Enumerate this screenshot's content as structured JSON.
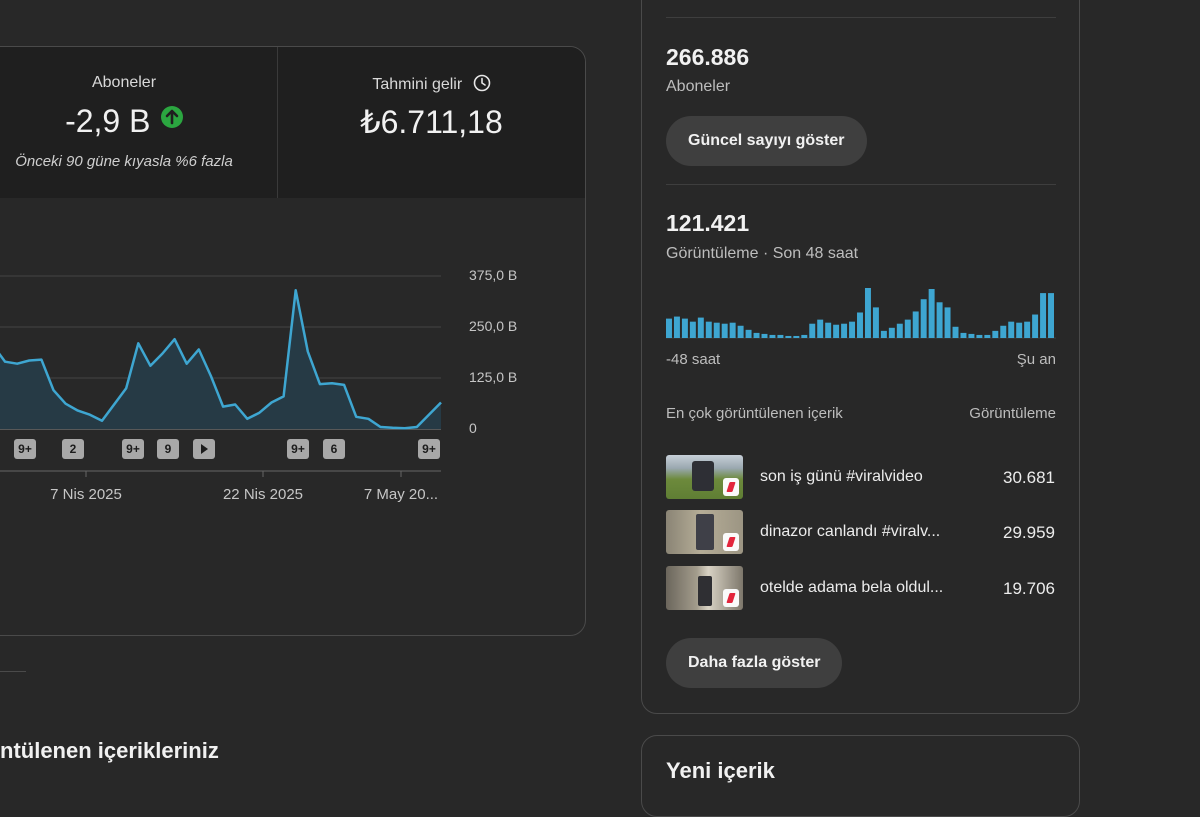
{
  "metrics": {
    "subscribers": {
      "label": "Aboneler",
      "value": "-2,9 B",
      "trend_icon": "arrow-up-icon",
      "trend_color": "#2ba640",
      "comparison": "Önceki 90 güne kıyasla %6 fazla"
    },
    "revenue": {
      "label": "Tahmini gelir",
      "info_icon": "clock-icon",
      "value": "₺6.711,18"
    }
  },
  "chart_data": {
    "type": "area",
    "ylabels": [
      "375,0 B",
      "250,0 B",
      "125,0 B",
      "0"
    ],
    "ylim": [
      0,
      375
    ],
    "xlabels": [
      "7 Nis 2025",
      "22 Nis 2025",
      "7 May 20..."
    ],
    "values": [
      205,
      165,
      160,
      168,
      170,
      95,
      62,
      45,
      35,
      20,
      60,
      100,
      210,
      155,
      185,
      220,
      160,
      195,
      130,
      55,
      60,
      25,
      40,
      65,
      80,
      340,
      190,
      110,
      112,
      108,
      30,
      25,
      5,
      3,
      2,
      5,
      35,
      65
    ],
    "line_color": "#3ea6d1",
    "area_color": "#263a45",
    "markers": [
      {
        "label": "9+",
        "type": "text"
      },
      {
        "label": "2",
        "type": "text"
      },
      {
        "label": "9+",
        "type": "text"
      },
      {
        "label": "9",
        "type": "text"
      },
      {
        "label": "",
        "type": "play-icon"
      },
      {
        "label": "9+",
        "type": "text"
      },
      {
        "label": "6",
        "type": "text"
      },
      {
        "label": "9+",
        "type": "text"
      }
    ]
  },
  "realtime": {
    "subscribers_value": "266.886",
    "subscribers_label": "Aboneler",
    "show_count_button": "Güncel sayıyı göster",
    "views_value": "121.421",
    "views_label": "Görüntüleme · Son 48 saat",
    "bar_values": [
      19,
      21,
      19,
      16,
      20,
      16,
      15,
      14,
      15,
      12,
      8,
      5,
      4,
      3,
      3,
      2,
      2,
      3,
      14,
      18,
      15,
      13,
      14,
      16,
      25,
      49,
      30,
      7,
      10,
      14,
      18,
      26,
      38,
      48,
      35,
      30,
      11,
      5,
      4,
      3,
      3,
      7,
      12,
      16,
      15,
      16,
      23,
      44,
      44
    ],
    "bar_color": "#3ea6d1",
    "time_start": "-48 saat",
    "time_end": "Şu an",
    "top_content_header": "En çok görüntülenen içerik",
    "top_content_views_header": "Görüntüleme",
    "items": [
      {
        "title": "son iş günü #viralvideo",
        "views": "30.681"
      },
      {
        "title": "dinazor canlandı #viralv...",
        "views": "29.959"
      },
      {
        "title": "otelde adama bela oldul...",
        "views": "19.706"
      }
    ],
    "more_button": "Daha fazla göster"
  },
  "section": {
    "title": "ntülenen içerikleriniz"
  },
  "new_content": {
    "title": "Yeni içerik"
  }
}
